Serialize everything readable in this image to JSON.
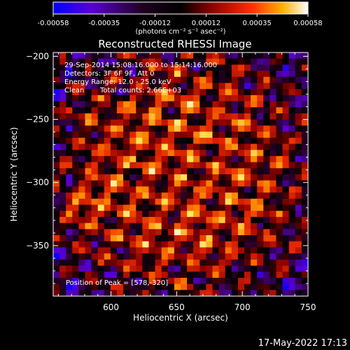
{
  "chart_data": {
    "type": "heatmap",
    "title": "Reconstructed RHESSI Image",
    "xlabel": "Heliocentric X (arcsec)",
    "ylabel": "Heliocentric Y (arcsec)",
    "xlim": [
      556,
      750
    ],
    "ylim": [
      -390,
      -197
    ],
    "xticks": [
      600,
      650,
      700,
      750
    ],
    "yticks": [
      -200,
      -250,
      -300,
      -350
    ],
    "colorbar": {
      "range": [
        -0.00058,
        0.00058
      ],
      "ticks": [
        "-0.00058",
        "-0.00035",
        "-0.00012",
        "0.00012",
        "0.00035",
        "0.00058"
      ],
      "unit_label": "(photons cm⁻² s⁻¹ asec⁻²)",
      "colormap": [
        "#0000ff",
        "#6a00c8",
        "#000000",
        "#8b0000",
        "#ff3000",
        "#ff9a00",
        "#ffff66",
        "#ffffff"
      ]
    },
    "annotations": {
      "time": "29-Sep-2014 15:08:16.000 to 15:14:16.000",
      "detectors": "Detectors: 3F 6F 9F, Att 0",
      "energy": "Energy Range: 12.0 - 25.0 keV",
      "algorithm": "Clean",
      "counts": "Total counts: 2.66E+03",
      "peak": "Position of Peak = [578,-320]"
    },
    "grid_size": [
      40,
      40
    ],
    "pattern_seed": 7,
    "peak": [
      578,
      -320
    ]
  },
  "footer": {
    "timestamp": "17-May-2022 17:13"
  }
}
